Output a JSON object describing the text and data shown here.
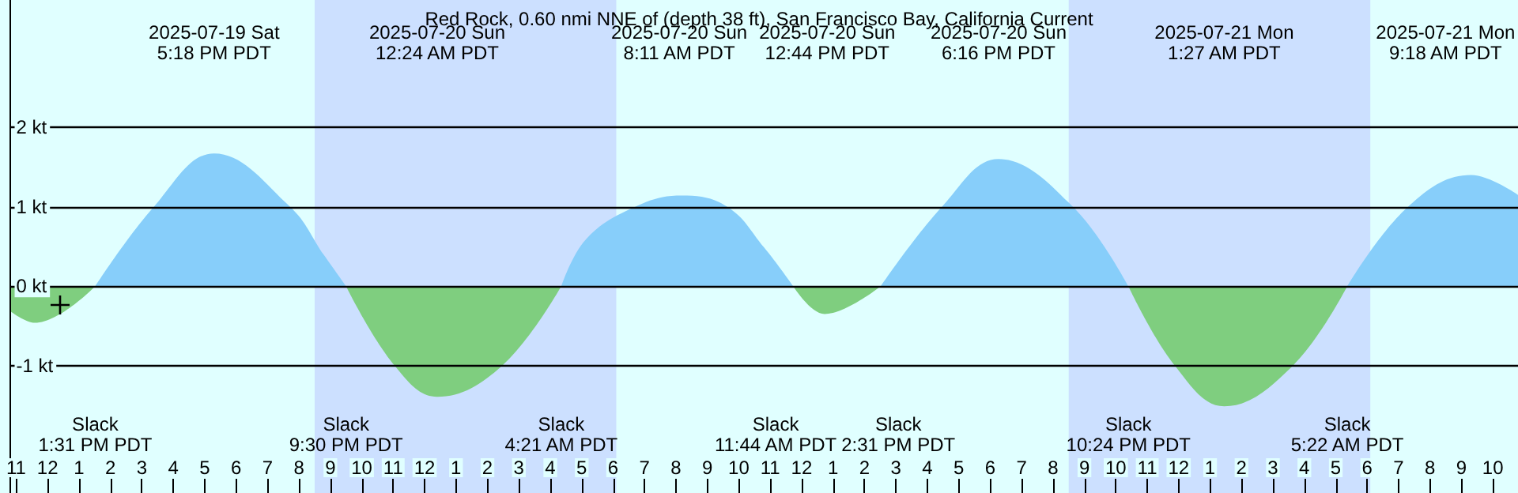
{
  "chart_data": {
    "type": "area",
    "title": "Red Rock, 0.60 nmi NNE of (depth 38 ft), San Francisco Bay, California Current",
    "series": [
      {
        "color": "#87cefa",
        "x": [
          "2025-07-19T13:31",
          "2025-07-19T15:23",
          "2025-07-19T17:18",
          "2025-07-19T19:43",
          "2025-07-19T20:48",
          "2025-07-19T21:30",
          "2025-07-20T01:00",
          "2025-07-20T04:21",
          "2025-07-20T05:08",
          "2025-07-20T06:42",
          "2025-07-20T08:11",
          "2025-07-20T09:38",
          "2025-07-20T10:48",
          "2025-07-20T11:44",
          "2025-07-20T13:00",
          "2025-07-20T14:31",
          "2025-07-20T16:28",
          "2025-07-20T18:16",
          "2025-07-20T20:38",
          "2025-07-20T22:24",
          "2025-07-21T02:00",
          "2025-07-21T05:22",
          "2025-07-21T07:18",
          "2025-07-21T09:18",
          "2025-07-21T10:48"
        ],
        "values": [
          0,
          1.0,
          1.67,
          1.0,
          0.39,
          0,
          null,
          0,
          0.59,
          1.0,
          1.14,
          1.0,
          0.49,
          0,
          null,
          0,
          1.0,
          1.6,
          1.0,
          0,
          null,
          0,
          1.0,
          1.4,
          1.15
        ]
      },
      {
        "color": "#7fce7f",
        "x": [
          "2025-07-19T10:48",
          "2025-07-19T11:36",
          "2025-07-19T13:31",
          "2025-07-19T17:00",
          "2025-07-19T21:30",
          "2025-07-19T23:03",
          "2025-07-20T00:24",
          "2025-07-20T02:28",
          "2025-07-20T04:21",
          "2025-07-20T08:00",
          "2025-07-20T11:44",
          "2025-07-20T12:44",
          "2025-07-20T14:31",
          "2025-07-20T18:00",
          "2025-07-20T22:24",
          "2025-07-20T23:53",
          "2025-07-21T01:27",
          "2025-07-21T03:38",
          "2025-07-21T05:22"
        ],
        "values": [
          -0.31,
          -0.46,
          0,
          null,
          0,
          -1.0,
          -1.39,
          -1.0,
          0,
          null,
          0,
          -0.35,
          0,
          null,
          0,
          -1.0,
          -1.51,
          -1.0,
          0
        ]
      }
    ],
    "xlim": [
      "2025-07-19T10:48",
      "2025-07-21T10:48"
    ],
    "xticks": [
      {
        "value": "2025-07-19T11:00",
        "label": "11"
      },
      {
        "value": "2025-07-19T12:00",
        "label": "12"
      },
      {
        "value": "2025-07-19T13:00",
        "label": "1"
      },
      {
        "value": "2025-07-19T14:00",
        "label": "2"
      },
      {
        "value": "2025-07-19T15:00",
        "label": "3"
      },
      {
        "value": "2025-07-19T16:00",
        "label": "4"
      },
      {
        "value": "2025-07-19T17:00",
        "label": "5"
      },
      {
        "value": "2025-07-19T18:00",
        "label": "6"
      },
      {
        "value": "2025-07-19T19:00",
        "label": "7"
      },
      {
        "value": "2025-07-19T20:00",
        "label": "8"
      },
      {
        "value": "2025-07-19T21:00",
        "label": "9"
      },
      {
        "value": "2025-07-19T22:00",
        "label": "10"
      },
      {
        "value": "2025-07-19T23:00",
        "label": "11"
      },
      {
        "value": "2025-07-20T00:00",
        "label": "12"
      },
      {
        "value": "2025-07-20T01:00",
        "label": "1"
      },
      {
        "value": "2025-07-20T02:00",
        "label": "2"
      },
      {
        "value": "2025-07-20T03:00",
        "label": "3"
      },
      {
        "value": "2025-07-20T04:00",
        "label": "4"
      },
      {
        "value": "2025-07-20T05:00",
        "label": "5"
      },
      {
        "value": "2025-07-20T06:00",
        "label": "6"
      },
      {
        "value": "2025-07-20T07:00",
        "label": "7"
      },
      {
        "value": "2025-07-20T08:00",
        "label": "8"
      },
      {
        "value": "2025-07-20T09:00",
        "label": "9"
      },
      {
        "value": "2025-07-20T10:00",
        "label": "10"
      },
      {
        "value": "2025-07-20T11:00",
        "label": "11"
      },
      {
        "value": "2025-07-20T12:00",
        "label": "12"
      },
      {
        "value": "2025-07-20T13:00",
        "label": "1"
      },
      {
        "value": "2025-07-20T14:00",
        "label": "2"
      },
      {
        "value": "2025-07-20T15:00",
        "label": "3"
      },
      {
        "value": "2025-07-20T16:00",
        "label": "4"
      },
      {
        "value": "2025-07-20T17:00",
        "label": "5"
      },
      {
        "value": "2025-07-20T18:00",
        "label": "6"
      },
      {
        "value": "2025-07-20T19:00",
        "label": "7"
      },
      {
        "value": "2025-07-20T20:00",
        "label": "8"
      },
      {
        "value": "2025-07-20T21:00",
        "label": "9"
      },
      {
        "value": "2025-07-20T22:00",
        "label": "10"
      },
      {
        "value": "2025-07-20T23:00",
        "label": "11"
      },
      {
        "value": "2025-07-21T00:00",
        "label": "12"
      },
      {
        "value": "2025-07-21T01:00",
        "label": "1"
      },
      {
        "value": "2025-07-21T02:00",
        "label": "2"
      },
      {
        "value": "2025-07-21T03:00",
        "label": "3"
      },
      {
        "value": "2025-07-21T04:00",
        "label": "4"
      },
      {
        "value": "2025-07-21T05:00",
        "label": "5"
      },
      {
        "value": "2025-07-21T06:00",
        "label": "6"
      },
      {
        "value": "2025-07-21T07:00",
        "label": "7"
      },
      {
        "value": "2025-07-21T08:00",
        "label": "8"
      },
      {
        "value": "2025-07-21T09:00",
        "label": "9"
      },
      {
        "value": "2025-07-21T10:00",
        "label": "10"
      }
    ],
    "ylim": [
      -2.6,
      3.6
    ],
    "yticks": [
      {
        "value": -1,
        "label": "-1 kt"
      },
      {
        "value": 0,
        "label": "0 kt"
      },
      {
        "value": 1,
        "label": "1 kt"
      },
      {
        "value": 2,
        "label": "2 kt"
      }
    ],
    "grid": "y",
    "bands": [
      {
        "axis": "x",
        "from": "2025-07-19T20:30",
        "to": "2025-07-20T06:06",
        "color": "#cce0ff"
      },
      {
        "axis": "x",
        "from": "2025-07-20T20:30",
        "to": "2025-07-21T06:06",
        "color": "#cce0ff"
      }
    ],
    "annotations": [
      "Slack\n1:31 PM PDT",
      "2025-07-19 Sat\n5:18 PM PDT",
      "Slack\n9:30 PM PDT",
      "2025-07-20 Sun\n12:24 AM PDT",
      "Slack\n4:21 AM PDT",
      "2025-07-20 Sun\n8:11 AM PDT",
      "Slack\n11:44 AM PDT",
      "2025-07-20 Sun\n12:44 PM PDT",
      "Slack\n2:31 PM PDT",
      "2025-07-20 Sun\n6:16 PM PDT",
      "Slack\n10:24 PM PDT",
      "2025-07-21 Mon\n1:27 AM PDT",
      "Slack\n5:22 AM PDT",
      "2025-07-21 Mon\n9:18 AM PDT"
    ]
  }
}
